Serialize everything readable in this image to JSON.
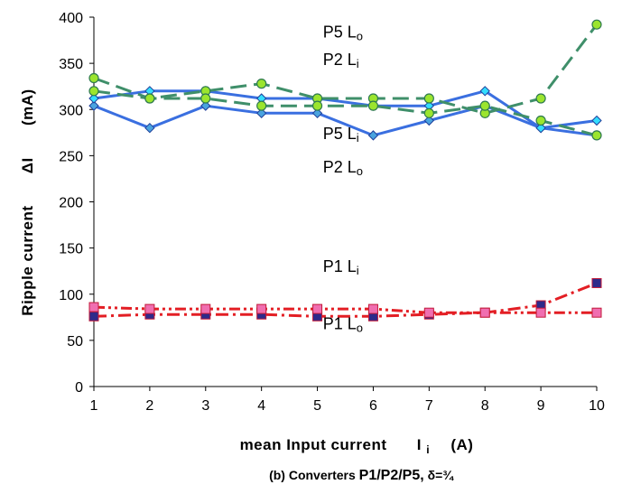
{
  "chart_data": {
    "type": "line",
    "x": [
      1,
      2,
      3,
      4,
      5,
      6,
      7,
      8,
      9,
      10
    ],
    "xlim": [
      1,
      10
    ],
    "ylim": [
      0,
      400
    ],
    "xticks": [
      "1",
      "2",
      "3",
      "4",
      "5",
      "6",
      "7",
      "8",
      "9",
      "10"
    ],
    "yticks": [
      "0",
      "50",
      "100",
      "150",
      "200",
      "250",
      "300",
      "350",
      "400"
    ],
    "xlabel": {
      "main": "mean Input current",
      "symbol": "I",
      "sub": "i",
      "unit": "(A)"
    },
    "ylabel": {
      "main": "Ripple current",
      "symbol": "ΔI",
      "unit": "(mA)"
    },
    "caption": {
      "prefix": "(b) Converters",
      "strong": "P1/P2/P5,",
      "delta": " δ=¾"
    },
    "grid": false,
    "legend": "none",
    "series": [
      {
        "name": "P5 Li",
        "color": "#3a6fe0",
        "dash": "solid",
        "marker": "diamond",
        "marker_color": "#4aa3df",
        "values": [
          304,
          280,
          304,
          296,
          296,
          272,
          288,
          304,
          280,
          272
        ]
      },
      {
        "name": "P5 Lo",
        "color": "#3a6fe0",
        "dash": "solid",
        "marker": "diamond",
        "marker_color": "#33ddff",
        "values": [
          312,
          320,
          320,
          312,
          312,
          304,
          304,
          320,
          280,
          288
        ]
      },
      {
        "name": "P2 Li",
        "color": "#3f8f6a",
        "dash": "long",
        "marker": "circle",
        "marker_color": "#9be52e",
        "values": [
          334,
          312,
          320,
          328,
          312,
          312,
          312,
          296,
          312,
          392
        ]
      },
      {
        "name": "P2 Lo",
        "color": "#3f8f6a",
        "dash": "long",
        "marker": "circle",
        "marker_color": "#9be52e",
        "values": [
          320,
          312,
          312,
          304,
          304,
          304,
          296,
          304,
          288,
          272
        ]
      },
      {
        "name": "P1 Li",
        "color": "#e31e24",
        "dash": "dashdot",
        "marker": "square",
        "marker_color": "#2d2a8a",
        "values": [
          76,
          78,
          78,
          78,
          76,
          76,
          78,
          80,
          88,
          112
        ]
      },
      {
        "name": "P1 Lo",
        "color": "#e31e24",
        "dash": "dashdotdot",
        "marker": "square",
        "marker_color": "#f06eb0",
        "values": [
          86,
          84,
          84,
          84,
          84,
          84,
          80,
          80,
          80,
          80
        ]
      }
    ],
    "annotations": [
      {
        "label": "P5 L",
        "sub": "o",
        "x": 5.1,
        "y": 378
      },
      {
        "label": "P2 L",
        "sub": "i",
        "x": 5.1,
        "y": 348
      },
      {
        "label": "P5 L",
        "sub": "i",
        "x": 5.1,
        "y": 268
      },
      {
        "label": "P2 L",
        "sub": "o",
        "x": 5.1,
        "y": 232
      },
      {
        "label": "P1 L",
        "sub": "i",
        "x": 5.1,
        "y": 124
      },
      {
        "label": "P1 L",
        "sub": "o",
        "x": 5.1,
        "y": 62
      }
    ]
  }
}
